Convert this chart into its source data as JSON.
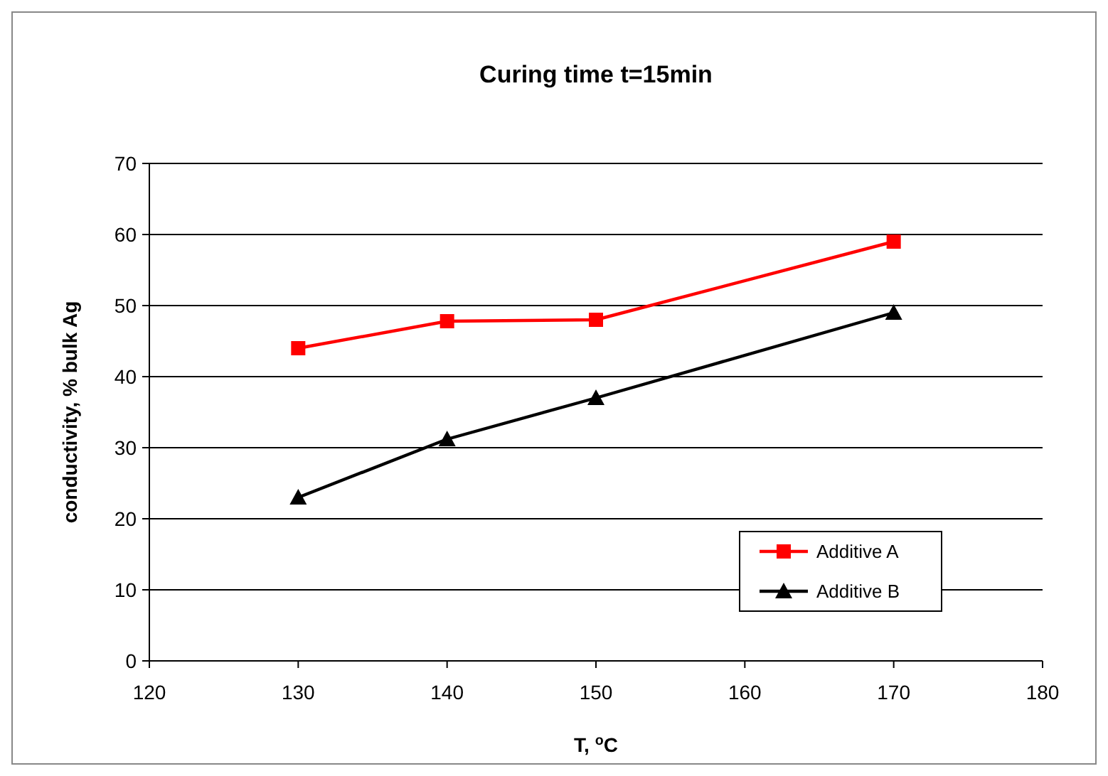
{
  "chart_data": {
    "type": "line",
    "title": "Curing time t=15min",
    "xlabel": "T, $^{o}$C",
    "ylabel": "conductivity, % bulk Ag",
    "x": [
      130,
      140,
      150,
      170
    ],
    "series": [
      {
        "name": "Additive A",
        "color": "#ff0000",
        "marker": "square",
        "values": [
          44,
          47.8,
          48,
          59
        ]
      },
      {
        "name": "Additive B",
        "color": "#000000",
        "marker": "triangle",
        "values": [
          23,
          31.2,
          37,
          49
        ]
      }
    ],
    "xlim": [
      120,
      180
    ],
    "xticks": [
      120,
      130,
      140,
      150,
      160,
      170,
      180
    ],
    "ylim": [
      0,
      70
    ],
    "yticks": [
      0,
      10,
      20,
      30,
      40,
      50,
      60,
      70
    ],
    "grid": "y",
    "legend": "bottom right",
    "line_style": "solid"
  }
}
